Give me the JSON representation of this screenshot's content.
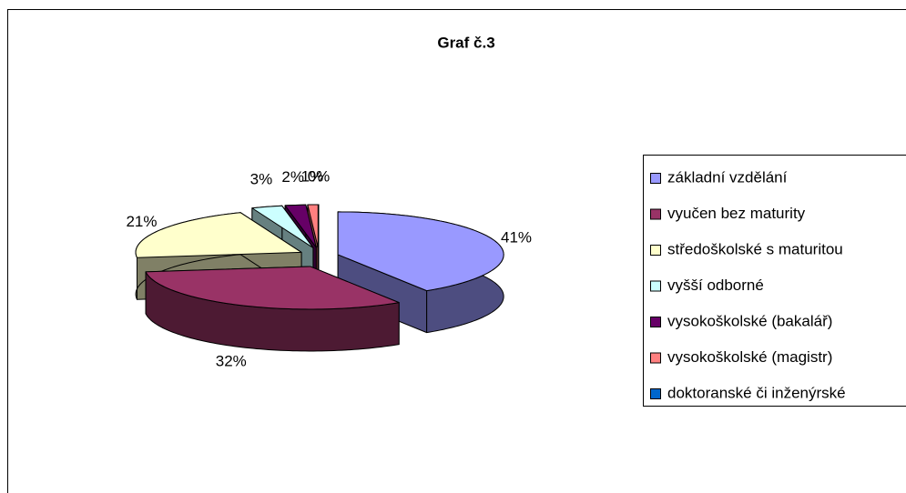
{
  "chart_data": {
    "type": "pie",
    "title": "Graf č.3",
    "categories": [
      "základní vzdělání",
      "vyučen bez maturity",
      "středoškolské s maturitou",
      "vyšší odborné",
      "vysokoškolské (bakalář)",
      "vysokoškolské (magistr)",
      "doktoranské či inženýrské"
    ],
    "values": [
      41,
      32,
      21,
      3,
      2,
      1,
      0
    ],
    "value_labels": [
      "41%",
      "32%",
      "21%",
      "3%",
      "2%",
      "1%",
      "0%"
    ],
    "colors": [
      "#9999ff",
      "#993366",
      "#ffffcc",
      "#ccffff",
      "#660066",
      "#ff8080",
      "#0066cc"
    ],
    "legend": "right"
  }
}
